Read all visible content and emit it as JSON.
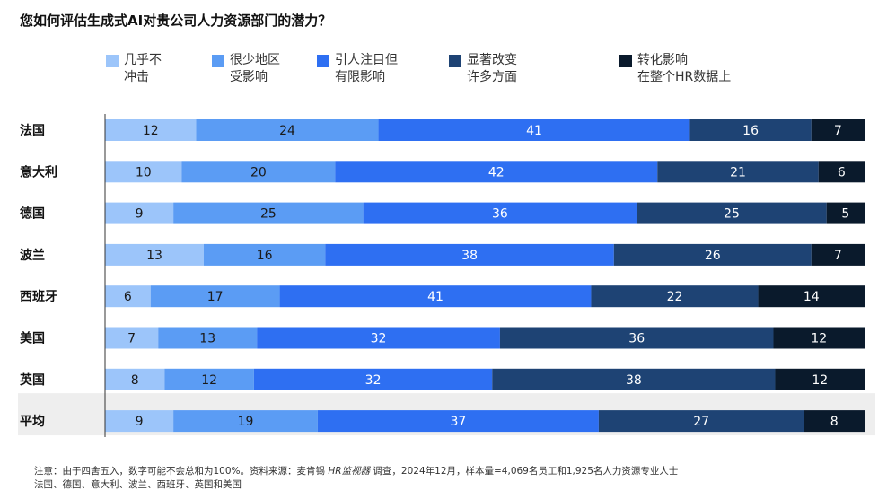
{
  "title": "您如何评估生成式AI对贵公司人力资源部门的潜力？",
  "chart_data": {
    "type": "bar",
    "orientation": "horizontal",
    "stacked": true,
    "title": "您如何评估生成式AI对贵公司人力资源部门的潜力？",
    "categories": [
      "法国",
      "意大利",
      "德国",
      "波兰",
      "西班牙",
      "美国",
      "英国",
      "平均"
    ],
    "highlighted_category": "平均",
    "series": [
      {
        "name": "几乎不冲击",
        "label_lines": [
          "几乎不",
          "冲击"
        ],
        "color": "#9cc5fa",
        "text_color": "#1a1a1a",
        "values": [
          12,
          10,
          9,
          13,
          6,
          7,
          8,
          9
        ]
      },
      {
        "name": "很少地区受影响",
        "label_lines": [
          "很少地区",
          "受影响"
        ],
        "color": "#5b9cf4",
        "text_color": "#1a1a1a",
        "values": [
          24,
          20,
          25,
          16,
          17,
          13,
          12,
          19
        ]
      },
      {
        "name": "引人注目但有限影响",
        "label_lines": [
          "引人注目但",
          "有限影响"
        ],
        "color": "#2e6ff2",
        "text_color": "#ffffff",
        "values": [
          41,
          42,
          36,
          38,
          41,
          32,
          32,
          37
        ]
      },
      {
        "name": "显著改变许多方面",
        "label_lines": [
          "显著改变",
          "许多方面"
        ],
        "color": "#1e4374",
        "text_color": "#ffffff",
        "values": [
          16,
          21,
          25,
          26,
          22,
          36,
          38,
          27
        ]
      },
      {
        "name": "转化影响在整个HR数据上",
        "label_lines": [
          "转化影响",
          "在整个HR数据上"
        ],
        "color": "#0a1a2c",
        "text_color": "#ffffff",
        "values": [
          7,
          6,
          5,
          7,
          14,
          12,
          12,
          8
        ]
      }
    ],
    "xlim": [
      0,
      100
    ],
    "legend_position": "top"
  },
  "footnote": {
    "line1_prefix": "注意：由于四舍五入，数字可能不会总和为100%。资料来源：麦肯锡",
    "line1_source": "HR监视器",
    "line1_suffix": "调查，2024年12月，样本量=4,069名员工和1,925名人力资源专业人士",
    "line2": "法国、德国、意大利、波兰、西班牙、英国和美国"
  }
}
